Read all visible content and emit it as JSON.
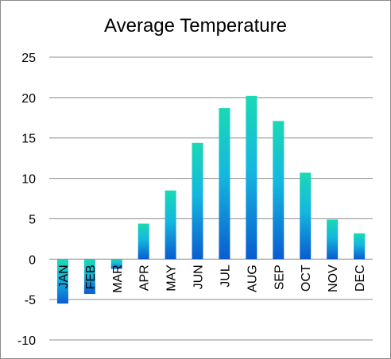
{
  "chart_data": {
    "type": "bar",
    "title": "Average Temperature",
    "xlabel": "",
    "ylabel": "",
    "categories": [
      "JAN",
      "FEB",
      "MAR",
      "APR",
      "MAY",
      "JUN",
      "JUL",
      "AUG",
      "SEP",
      "OCT",
      "NOV",
      "DEC"
    ],
    "values": [
      -5.5,
      -4.3,
      -1.2,
      4.4,
      8.5,
      14.4,
      18.7,
      20.2,
      17.1,
      10.7,
      4.9,
      3.2
    ],
    "ylim": [
      -10,
      25
    ],
    "yticks": [
      "25",
      "20",
      "15",
      "10",
      "5",
      "0",
      "-5",
      "-10"
    ],
    "ytick_values": [
      25,
      20,
      15,
      10,
      5,
      0,
      -5,
      -10
    ],
    "grid": true,
    "legend": "none",
    "colors": {
      "bar_top": "#1ad9b4",
      "bar_mid": "#14b7e0",
      "bar_bottom": "#0a5cd0",
      "gridline": "#8c8c8c",
      "axis_text": "#000000"
    }
  }
}
